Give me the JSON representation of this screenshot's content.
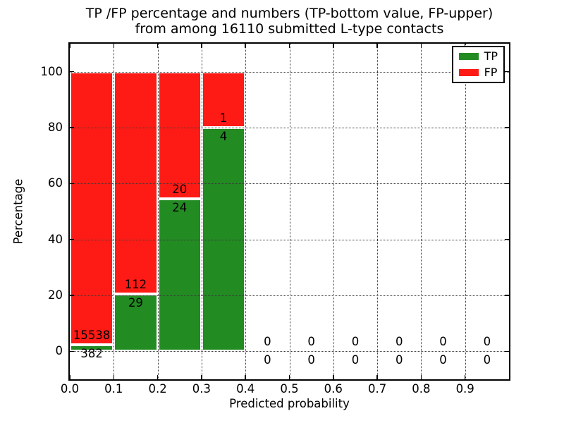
{
  "title": {
    "line1": "TP /FP percentage and numbers (TP-bottom value, FP-upper)",
    "line2": "from among 16110 submitted L-type contacts"
  },
  "colors": {
    "tp": "#228b22",
    "fp": "#ff1b15",
    "grid": "#3a3a3a",
    "frame": "#000000",
    "background": "#ffffff"
  },
  "chart_data": {
    "type": "bar",
    "stacked": true,
    "title": "TP /FP percentage and numbers (TP-bottom value, FP-upper) from among 16110 submitted L-type contacts",
    "xlabel": "Predicted probability",
    "ylabel": "Percentage",
    "xlim": [
      0.0,
      1.0
    ],
    "ylim": [
      -10,
      110
    ],
    "x_ticks": [
      "0.0",
      "0.1",
      "0.2",
      "0.3",
      "0.4",
      "0.5",
      "0.6",
      "0.7",
      "0.8",
      "0.9"
    ],
    "y_ticks": [
      0,
      20,
      40,
      60,
      80,
      100
    ],
    "grid": true,
    "grid_style": "dotted",
    "legend_position": "upper right",
    "legend": [
      {
        "label": "TP",
        "color": "#228b22"
      },
      {
        "label": "FP",
        "color": "#ff1b15"
      }
    ],
    "total_submitted": 16110,
    "bins": [
      {
        "range": [
          0.0,
          0.1
        ],
        "tp_count": 382,
        "fp_count": 15538,
        "tp_pct": 2.4,
        "fp_pct": 97.6
      },
      {
        "range": [
          0.1,
          0.2
        ],
        "tp_count": 29,
        "fp_count": 112,
        "tp_pct": 20.6,
        "fp_pct": 79.4
      },
      {
        "range": [
          0.2,
          0.3
        ],
        "tp_count": 24,
        "fp_count": 20,
        "tp_pct": 54.5,
        "fp_pct": 45.5
      },
      {
        "range": [
          0.3,
          0.4
        ],
        "tp_count": 4,
        "fp_count": 1,
        "tp_pct": 80.0,
        "fp_pct": 20.0
      },
      {
        "range": [
          0.4,
          0.5
        ],
        "tp_count": 0,
        "fp_count": 0,
        "tp_pct": 0,
        "fp_pct": 0
      },
      {
        "range": [
          0.5,
          0.6
        ],
        "tp_count": 0,
        "fp_count": 0,
        "tp_pct": 0,
        "fp_pct": 0
      },
      {
        "range": [
          0.6,
          0.7
        ],
        "tp_count": 0,
        "fp_count": 0,
        "tp_pct": 0,
        "fp_pct": 0
      },
      {
        "range": [
          0.7,
          0.8
        ],
        "tp_count": 0,
        "fp_count": 0,
        "tp_pct": 0,
        "fp_pct": 0
      },
      {
        "range": [
          0.8,
          0.9
        ],
        "tp_count": 0,
        "fp_count": 0,
        "tp_pct": 0,
        "fp_pct": 0
      },
      {
        "range": [
          0.9,
          1.0
        ],
        "tp_count": 0,
        "fp_count": 0,
        "tp_pct": 0,
        "fp_pct": 0
      }
    ]
  }
}
